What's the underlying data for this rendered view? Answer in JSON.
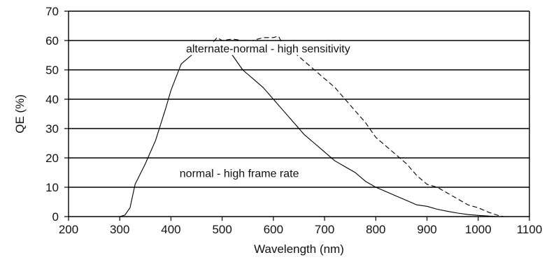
{
  "chart_data": {
    "type": "line",
    "xlabel": "Wavelength (nm)",
    "ylabel": "QE (%)",
    "xlim": [
      200,
      1100
    ],
    "ylim": [
      0,
      70
    ],
    "xticks": [
      200,
      300,
      400,
      500,
      600,
      700,
      800,
      900,
      1000,
      1100
    ],
    "yticks": [
      0,
      10,
      20,
      30,
      40,
      50,
      60,
      70
    ],
    "grid": "horizontal",
    "series": [
      {
        "name": "normal - high frame rate",
        "style": "solid",
        "x": [
          260,
          280,
          300,
          310,
          320,
          330,
          350,
          370,
          390,
          400,
          420,
          440,
          460,
          480,
          490,
          500,
          520,
          540,
          560,
          580,
          600,
          620,
          640,
          660,
          680,
          700,
          720,
          740,
          760,
          780,
          800,
          820,
          840,
          860,
          880,
          900,
          920,
          940,
          960,
          980,
          1000,
          1020,
          1040,
          1060,
          1070
        ],
        "y": [
          0,
          0,
          0,
          0.5,
          3,
          11,
          18,
          26,
          37,
          43,
          52,
          55,
          57,
          58,
          58.5,
          57,
          55,
          50,
          47,
          44,
          40,
          36,
          32,
          28,
          25,
          22,
          19,
          17,
          15,
          12,
          10,
          8.5,
          7,
          5.5,
          4,
          3.5,
          2.5,
          1.8,
          1.2,
          0.7,
          0.4,
          0.2,
          0,
          0,
          0
        ]
      },
      {
        "name": "alternate-normal - high sensitivity",
        "style": "dashed",
        "x": [
          470,
          480,
          490,
          500,
          520,
          540,
          560,
          580,
          600,
          610,
          620,
          640,
          660,
          680,
          700,
          720,
          740,
          760,
          780,
          800,
          820,
          840,
          860,
          880,
          900,
          920,
          940,
          960,
          980,
          1000,
          1020,
          1040,
          1050
        ],
        "y": [
          58.5,
          59,
          61,
          60,
          60.5,
          60,
          60,
          61,
          61,
          61.5,
          58,
          56,
          53,
          50,
          47,
          44,
          40,
          36,
          32,
          27,
          24,
          21,
          18,
          14,
          11,
          10,
          8,
          6,
          4,
          3,
          1.5,
          0.3,
          0
        ]
      }
    ],
    "annotations": [
      {
        "text": "alternate-normal - high sensitivity",
        "x": 750,
        "y": 56
      },
      {
        "text": "normal - high frame rate",
        "x": 650,
        "y": 13.5
      }
    ]
  }
}
